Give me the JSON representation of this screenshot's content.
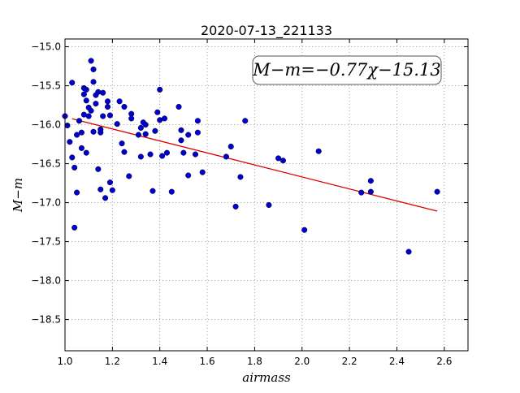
{
  "chart_data": {
    "type": "scatter",
    "title": "2020-07-13_221133",
    "xlabel": "airmass",
    "ylabel": "M−m",
    "xlim": [
      1.0,
      2.7
    ],
    "ylim": [
      -18.9,
      -14.9
    ],
    "y_inverted": true,
    "grid": true,
    "xticks": [
      1.0,
      1.2,
      1.4,
      1.6,
      1.8,
      2.0,
      2.2,
      2.4,
      2.6
    ],
    "xtick_labels": [
      "1.0",
      "1.2",
      "1.4",
      "1.6",
      "1.8",
      "2.0",
      "2.2",
      "2.4",
      "2.6"
    ],
    "yticks": [
      -15.0,
      -15.5,
      -16.0,
      -16.5,
      -17.0,
      -17.5,
      -18.0,
      -18.5
    ],
    "ytick_labels": [
      "−15.0",
      "−15.5",
      "−16.0",
      "−16.5",
      "−17.0",
      "−17.5",
      "−18.0",
      "−18.5"
    ],
    "annotation": "M−m=−0.77χ−15.13",
    "point_color": "#0000cc",
    "fit_color": "#dd0000",
    "fit": {
      "slope": -0.77,
      "intercept": -15.13,
      "x_range": [
        1.03,
        2.57
      ]
    },
    "series": [
      {
        "x": [
          1.0,
          1.01,
          1.02,
          1.03,
          1.03,
          1.04,
          1.04,
          1.05,
          1.05,
          1.06,
          1.07,
          1.07,
          1.08,
          1.08,
          1.08,
          1.09,
          1.09,
          1.09,
          1.1,
          1.1,
          1.11,
          1.11,
          1.12,
          1.12,
          1.12,
          1.13,
          1.13,
          1.14,
          1.14,
          1.15,
          1.15,
          1.15,
          1.16,
          1.16,
          1.17,
          1.18,
          1.18,
          1.19,
          1.19,
          1.2,
          1.22,
          1.23,
          1.24,
          1.25,
          1.25,
          1.27,
          1.28,
          1.28,
          1.31,
          1.32,
          1.32,
          1.33,
          1.34,
          1.34,
          1.36,
          1.37,
          1.38,
          1.39,
          1.4,
          1.4,
          1.41,
          1.42,
          1.43,
          1.45,
          1.48,
          1.49,
          1.49,
          1.5,
          1.52,
          1.52,
          1.55,
          1.56,
          1.56,
          1.58,
          1.68,
          1.7,
          1.72,
          1.74,
          1.76,
          1.86,
          1.9,
          1.92,
          2.01,
          2.07,
          2.25,
          2.29,
          2.29,
          2.45,
          2.57
        ],
        "y": [
          -15.89,
          -16.01,
          -16.22,
          -16.42,
          -15.46,
          -16.55,
          -17.32,
          -16.87,
          -16.13,
          -15.95,
          -16.1,
          -16.3,
          -15.61,
          -15.53,
          -15.87,
          -15.55,
          -15.69,
          -16.36,
          -15.89,
          -15.78,
          -15.18,
          -15.82,
          -16.09,
          -15.45,
          -15.29,
          -15.73,
          -15.62,
          -15.58,
          -16.57,
          -16.83,
          -16.06,
          -16.1,
          -15.89,
          -15.59,
          -16.94,
          -15.7,
          -15.77,
          -16.74,
          -15.88,
          -16.84,
          -15.99,
          -15.7,
          -16.24,
          -15.77,
          -16.35,
          -16.66,
          -15.86,
          -15.92,
          -16.13,
          -16.04,
          -16.41,
          -15.97,
          -16.12,
          -16.0,
          -16.38,
          -16.85,
          -16.08,
          -15.84,
          -15.55,
          -15.94,
          -16.4,
          -15.92,
          -16.36,
          -16.86,
          -15.77,
          -16.07,
          -16.2,
          -16.36,
          -16.13,
          -16.65,
          -16.38,
          -16.1,
          -15.95,
          -16.61,
          -16.41,
          -16.28,
          -17.05,
          -16.67,
          -15.95,
          -17.03,
          -16.43,
          -16.46,
          -17.35,
          -16.34,
          -16.87,
          -16.72,
          -16.86,
          -17.63,
          -16.86
        ]
      }
    ]
  }
}
